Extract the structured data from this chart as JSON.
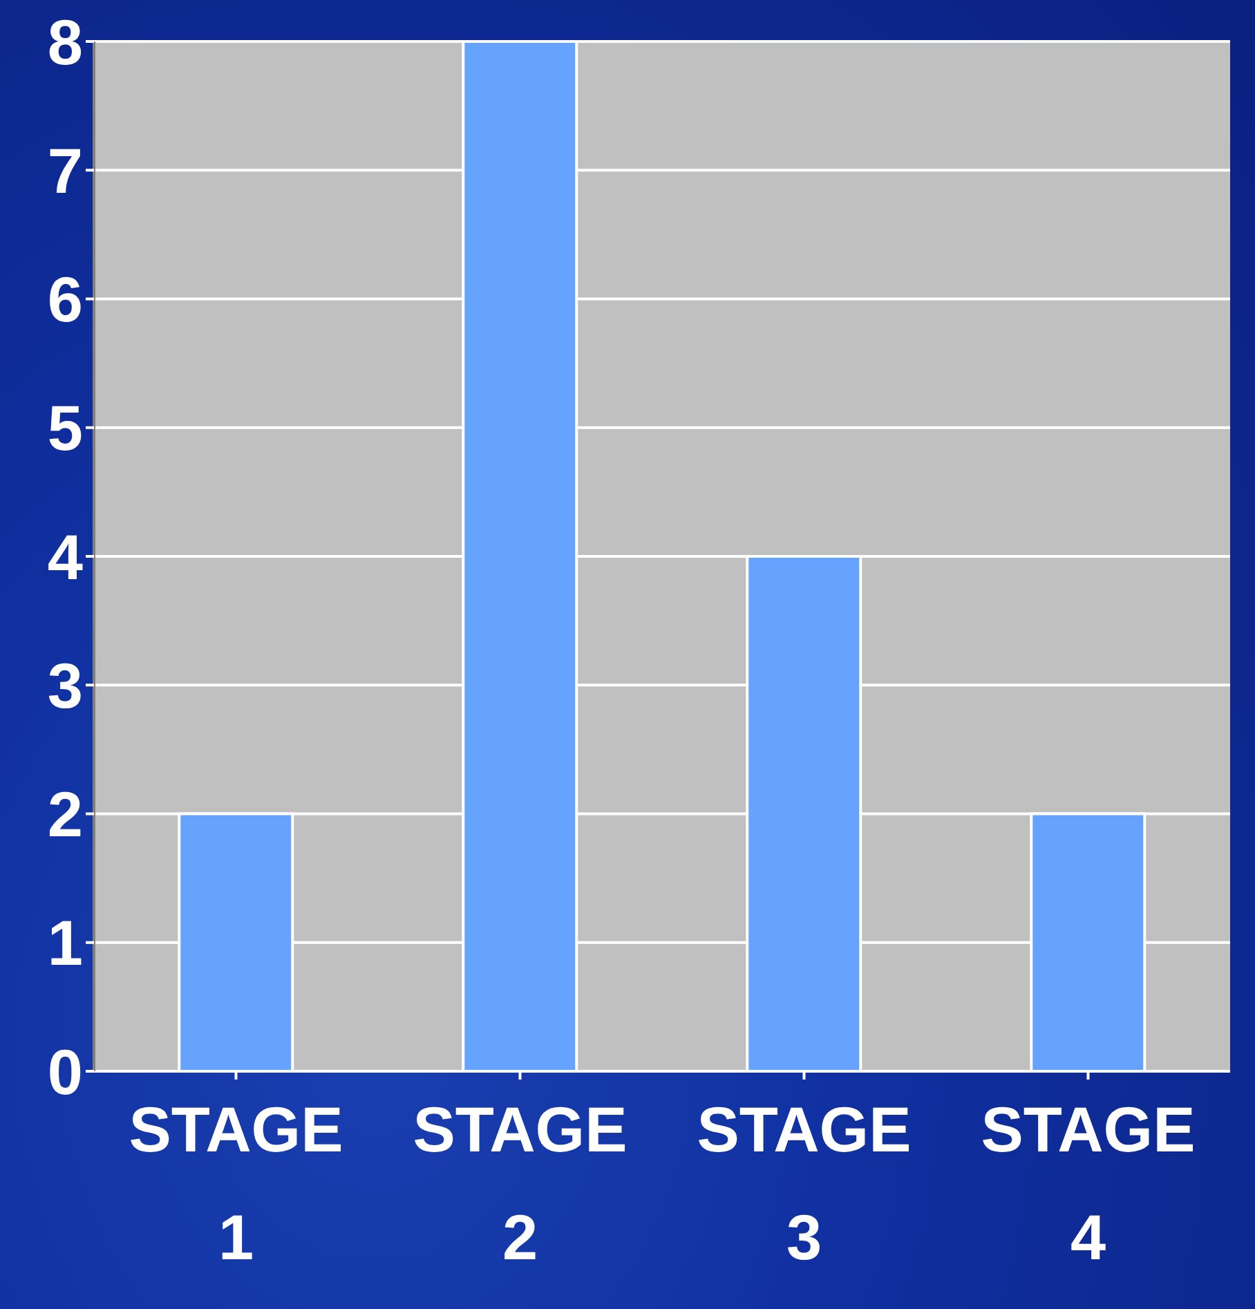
{
  "chart_data": {
    "type": "bar",
    "categories": [
      "STAGE 1",
      "STAGE 2",
      "STAGE 3",
      "STAGE 4"
    ],
    "values": [
      2,
      8,
      4,
      2
    ],
    "color": "#66a3ff",
    "ylim": [
      0,
      8
    ],
    "yticks": [
      0,
      1,
      2,
      3,
      4,
      5,
      6,
      7,
      8
    ],
    "grid": "y",
    "legend": false
  }
}
